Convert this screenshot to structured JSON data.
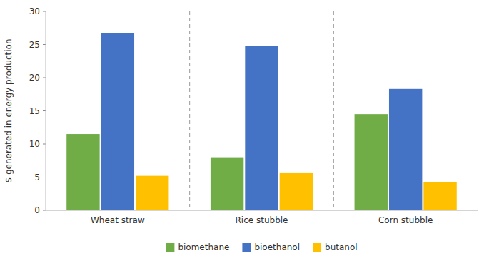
{
  "chart_data": {
    "type": "bar",
    "categories": [
      "Wheat straw",
      "Rice stubble",
      "Corn stubble"
    ],
    "series": [
      {
        "name": "biomethane",
        "color": "#70AD47",
        "values": [
          11.5,
          8.0,
          14.5
        ]
      },
      {
        "name": "bioethanol",
        "color": "#4472C4",
        "values": [
          26.7,
          24.8,
          18.3
        ]
      },
      {
        "name": "butanol",
        "color": "#FFC000",
        "values": [
          5.2,
          5.6,
          4.3
        ]
      }
    ],
    "ylabel": "$ generated in energy production",
    "ylim": [
      0,
      30
    ],
    "yticks": [
      0,
      5,
      10,
      15,
      20,
      25,
      30
    ],
    "grid": false,
    "legend": "bottom"
  }
}
